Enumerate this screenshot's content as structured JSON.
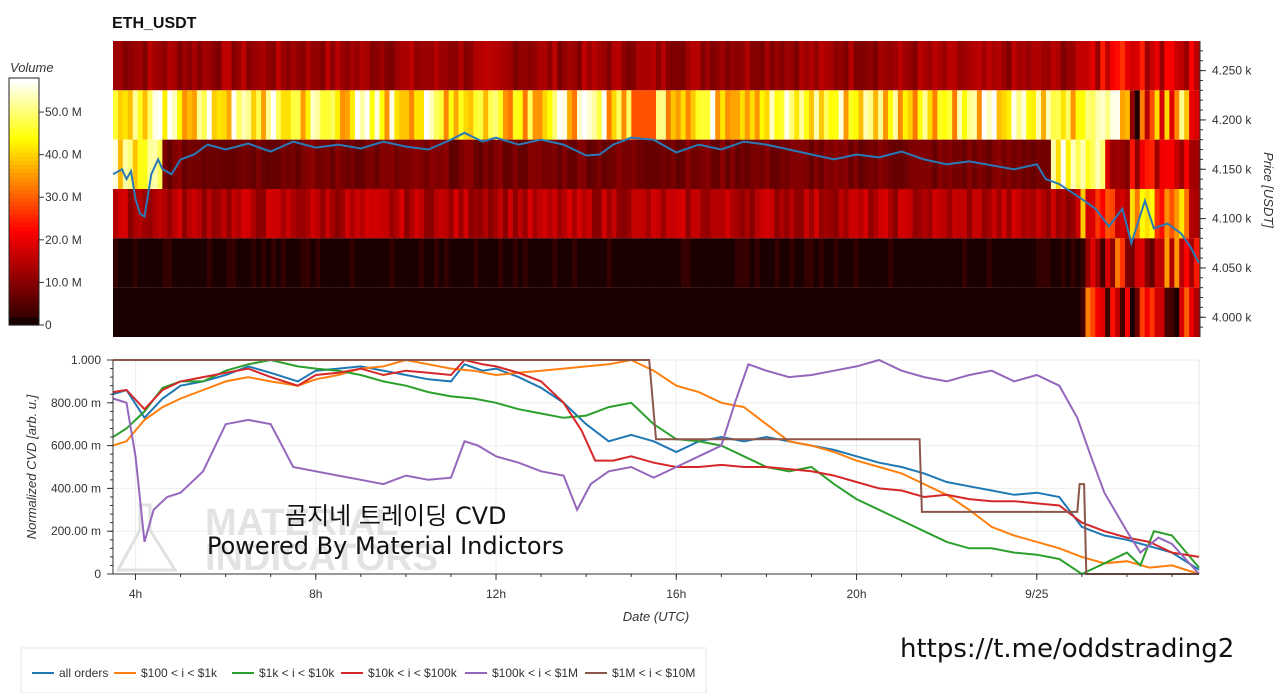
{
  "chart_data": [
    {
      "type": "heatmap",
      "title": "ETH_USDT",
      "colorbar_label": "Volume",
      "colorbar_ticks": [
        "0",
        "10.0 M",
        "20.0 M",
        "30.0 M",
        "40.0 M",
        "50.0 M"
      ],
      "colorbar_range": [
        0,
        58000000
      ],
      "ylabel": "Price [USDT]",
      "y_ticks": [
        "4.000 k",
        "4.050 k",
        "4.100 k",
        "4.150 k",
        "4.200 k",
        "4.250 k"
      ],
      "ylim": [
        3980,
        4280
      ],
      "price_bands": [
        {
          "low": 4230,
          "high": 4280,
          "level": 12
        },
        {
          "low": 4180,
          "high": 4230,
          "level": 46
        },
        {
          "low": 4130,
          "high": 4180,
          "level": 8
        },
        {
          "low": 4080,
          "high": 4130,
          "level": 14
        },
        {
          "low": 4030,
          "high": 4080,
          "level": 1
        },
        {
          "low": 3980,
          "high": 4030,
          "level": 0
        }
      ],
      "price_series": {
        "name": "price",
        "color": "#2a7ab8",
        "x_hours": [
          3.5,
          3.7,
          3.8,
          3.9,
          4.0,
          4.1,
          4.2,
          4.35,
          4.5,
          4.6,
          4.8,
          5.0,
          5.3,
          5.6,
          6.0,
          6.5,
          7.0,
          7.5,
          8.0,
          8.5,
          9.0,
          9.5,
          10.0,
          10.5,
          11.0,
          11.3,
          11.7,
          12.0,
          12.5,
          13.0,
          13.5,
          14.0,
          14.3,
          14.6,
          15.0,
          15.5,
          16.0,
          16.5,
          17.0,
          17.5,
          18.0,
          18.5,
          19.0,
          19.5,
          20.0,
          20.5,
          21.0,
          21.5,
          22.0,
          22.5,
          23.0,
          23.5,
          24.0,
          24.2,
          24.5,
          25.0,
          25.3,
          25.6,
          25.9,
          26.1,
          26.4,
          26.6,
          26.9,
          27.2,
          27.4,
          27.6
        ],
        "price": [
          4145,
          4150,
          4140,
          4148,
          4120,
          4105,
          4102,
          4145,
          4160,
          4150,
          4145,
          4160,
          4165,
          4175,
          4170,
          4176,
          4168,
          4178,
          4172,
          4175,
          4171,
          4178,
          4173,
          4170,
          4180,
          4187,
          4178,
          4182,
          4175,
          4180,
          4175,
          4164,
          4165,
          4175,
          4182,
          4180,
          4167,
          4175,
          4170,
          4178,
          4175,
          4170,
          4165,
          4160,
          4165,
          4162,
          4168,
          4160,
          4155,
          4158,
          4154,
          4150,
          4155,
          4140,
          4135,
          4120,
          4110,
          4092,
          4110,
          4075,
          4118,
          4090,
          4095,
          4085,
          4072,
          4055
        ]
      }
    },
    {
      "type": "line",
      "xlabel": "Date (UTC)",
      "ylabel": "Normalized CVD [arb. u.]",
      "x_ticks": [
        "4h",
        "8h",
        "12h",
        "16h",
        "20h",
        "9/25"
      ],
      "x_tick_hours": [
        4,
        8,
        12,
        16,
        20,
        24
      ],
      "xlim_hours": [
        3.5,
        27.6
      ],
      "y_ticks": [
        "0",
        "200.00 m",
        "400.00 m",
        "600.00 m",
        "800.00 m",
        "1.000"
      ],
      "ylim": [
        0,
        1.0
      ],
      "series": [
        {
          "name": "all orders",
          "color": "#1f77b4",
          "x": [
            3.5,
            3.8,
            4.2,
            4.6,
            5.0,
            5.5,
            6.0,
            6.5,
            7.0,
            7.6,
            8.0,
            8.5,
            9.0,
            9.5,
            10.0,
            10.5,
            11.0,
            11.3,
            11.7,
            12.0,
            12.5,
            13.0,
            13.5,
            14.0,
            14.5,
            15.0,
            15.5,
            16.0,
            16.5,
            17.0,
            17.5,
            18.0,
            18.5,
            19.0,
            19.5,
            20.0,
            20.5,
            21.0,
            21.5,
            22.0,
            22.5,
            23.0,
            23.5,
            24.0,
            24.5,
            25.0,
            25.5,
            26.0,
            26.5,
            27.0,
            27.6
          ],
          "y": [
            0.84,
            0.86,
            0.73,
            0.82,
            0.88,
            0.9,
            0.93,
            0.97,
            0.94,
            0.9,
            0.95,
            0.96,
            0.97,
            0.95,
            0.93,
            0.91,
            0.9,
            0.98,
            0.95,
            0.96,
            0.92,
            0.87,
            0.8,
            0.7,
            0.62,
            0.65,
            0.62,
            0.57,
            0.62,
            0.64,
            0.62,
            0.64,
            0.62,
            0.6,
            0.58,
            0.55,
            0.52,
            0.5,
            0.47,
            0.43,
            0.41,
            0.39,
            0.37,
            0.38,
            0.36,
            0.22,
            0.18,
            0.16,
            0.13,
            0.1,
            0.02
          ]
        },
        {
          "name": "$100 < i < $1k",
          "color": "#ff7f0e",
          "x": [
            3.5,
            3.8,
            4.2,
            4.6,
            5.0,
            5.5,
            6.0,
            6.5,
            7.0,
            7.6,
            8.0,
            8.5,
            9.0,
            9.5,
            10.0,
            10.5,
            11.0,
            11.5,
            12.0,
            12.5,
            13.0,
            13.5,
            14.0,
            14.5,
            15.0,
            15.5,
            16.0,
            16.5,
            17.0,
            17.5,
            18.0,
            18.5,
            19.0,
            19.5,
            20.0,
            20.5,
            21.0,
            21.5,
            22.0,
            22.5,
            23.0,
            23.5,
            24.0,
            24.5,
            25.0,
            25.5,
            26.0,
            26.5,
            27.0,
            27.6
          ],
          "y": [
            0.6,
            0.62,
            0.72,
            0.78,
            0.82,
            0.86,
            0.9,
            0.92,
            0.9,
            0.88,
            0.91,
            0.93,
            0.96,
            0.97,
            1.0,
            0.98,
            0.96,
            0.95,
            0.93,
            0.94,
            0.95,
            0.96,
            0.97,
            0.98,
            1.0,
            0.95,
            0.88,
            0.85,
            0.8,
            0.78,
            0.7,
            0.62,
            0.6,
            0.57,
            0.53,
            0.5,
            0.47,
            0.42,
            0.37,
            0.3,
            0.22,
            0.18,
            0.15,
            0.12,
            0.08,
            0.05,
            0.06,
            0.03,
            0.04,
            0.0
          ]
        },
        {
          "name": "$1k < i < $10k",
          "color": "#2ca02c",
          "x": [
            3.5,
            3.8,
            4.2,
            4.6,
            5.0,
            5.5,
            6.0,
            6.5,
            7.0,
            7.6,
            8.0,
            8.5,
            9.0,
            9.5,
            10.0,
            10.5,
            11.0,
            11.5,
            12.0,
            12.5,
            13.0,
            13.5,
            14.0,
            14.5,
            15.0,
            15.5,
            16.0,
            16.5,
            17.0,
            17.5,
            18.0,
            18.5,
            19.0,
            19.5,
            20.0,
            20.5,
            21.0,
            21.5,
            22.0,
            22.5,
            23.0,
            23.5,
            24.0,
            24.5,
            25.0,
            25.5,
            26.0,
            26.3,
            26.6,
            27.0,
            27.6
          ],
          "y": [
            0.64,
            0.68,
            0.76,
            0.87,
            0.9,
            0.9,
            0.95,
            0.98,
            1.0,
            0.97,
            0.96,
            0.95,
            0.93,
            0.9,
            0.88,
            0.85,
            0.83,
            0.82,
            0.8,
            0.77,
            0.75,
            0.73,
            0.74,
            0.78,
            0.8,
            0.7,
            0.63,
            0.62,
            0.6,
            0.55,
            0.5,
            0.48,
            0.5,
            0.42,
            0.35,
            0.3,
            0.25,
            0.2,
            0.15,
            0.12,
            0.12,
            0.1,
            0.09,
            0.07,
            0.0,
            0.05,
            0.1,
            0.04,
            0.2,
            0.18,
            0.03
          ]
        },
        {
          "name": "$10k < i < $100k",
          "color": "#d62728",
          "x": [
            3.5,
            3.8,
            4.2,
            4.6,
            5.0,
            5.5,
            6.0,
            6.5,
            7.0,
            7.6,
            8.0,
            8.5,
            9.0,
            9.5,
            10.0,
            10.5,
            11.0,
            11.3,
            11.7,
            12.0,
            12.5,
            13.0,
            13.5,
            13.9,
            14.2,
            14.6,
            15.0,
            15.5,
            16.0,
            16.5,
            17.0,
            17.5,
            18.0,
            18.5,
            19.0,
            19.5,
            20.0,
            20.5,
            21.0,
            21.5,
            22.0,
            22.5,
            23.0,
            23.5,
            24.0,
            24.5,
            25.0,
            25.5,
            26.0,
            26.5,
            27.0,
            27.6
          ],
          "y": [
            0.85,
            0.86,
            0.77,
            0.86,
            0.9,
            0.92,
            0.94,
            0.96,
            0.92,
            0.88,
            0.93,
            0.94,
            0.96,
            0.93,
            0.95,
            0.94,
            0.93,
            1.0,
            0.98,
            0.97,
            0.94,
            0.9,
            0.8,
            0.67,
            0.53,
            0.53,
            0.55,
            0.52,
            0.5,
            0.5,
            0.51,
            0.5,
            0.5,
            0.49,
            0.48,
            0.46,
            0.43,
            0.4,
            0.39,
            0.36,
            0.37,
            0.35,
            0.34,
            0.34,
            0.33,
            0.32,
            0.24,
            0.2,
            0.17,
            0.15,
            0.1,
            0.08
          ]
        },
        {
          "name": "$100k < i < $1M",
          "color": "#9467bd",
          "x": [
            3.5,
            3.8,
            4.0,
            4.2,
            4.4,
            4.7,
            5.0,
            5.5,
            6.0,
            6.5,
            7.0,
            7.5,
            8.0,
            8.5,
            9.0,
            9.5,
            10.0,
            10.5,
            11.0,
            11.3,
            11.6,
            12.0,
            12.5,
            13.0,
            13.5,
            13.8,
            14.1,
            14.5,
            15.0,
            15.5,
            16.0,
            16.5,
            17.0,
            17.3,
            17.6,
            18.0,
            18.5,
            19.0,
            19.5,
            20.0,
            20.5,
            21.0,
            21.5,
            22.0,
            22.5,
            23.0,
            23.5,
            24.0,
            24.5,
            24.9,
            25.2,
            25.5,
            26.0,
            26.3,
            26.7,
            27.0,
            27.6
          ],
          "y": [
            0.82,
            0.8,
            0.55,
            0.15,
            0.3,
            0.36,
            0.38,
            0.48,
            0.7,
            0.72,
            0.7,
            0.5,
            0.48,
            0.46,
            0.44,
            0.42,
            0.46,
            0.44,
            0.45,
            0.62,
            0.6,
            0.55,
            0.52,
            0.48,
            0.46,
            0.3,
            0.42,
            0.48,
            0.5,
            0.45,
            0.5,
            0.55,
            0.6,
            0.8,
            0.98,
            0.95,
            0.92,
            0.93,
            0.95,
            0.97,
            1.0,
            0.95,
            0.92,
            0.9,
            0.93,
            0.95,
            0.9,
            0.93,
            0.88,
            0.73,
            0.55,
            0.38,
            0.2,
            0.1,
            0.17,
            0.14,
            0.0
          ]
        },
        {
          "name": "$1M < i < $10M",
          "color": "#8c564b",
          "x": [
            3.5,
            15.4,
            15.55,
            21.4,
            21.45,
            24.9,
            24.95,
            25.05,
            25.1,
            25.15,
            27.6
          ],
          "y": [
            1.0,
            1.0,
            0.63,
            0.63,
            0.29,
            0.29,
            0.42,
            0.42,
            0.0,
            0.0,
            0.0
          ]
        }
      ]
    }
  ],
  "watermark": {
    "line1": "곰지네 트레이딩 CVD",
    "line2": "Powered By Material Indictors",
    "ghost1": "MATERIAL",
    "ghost2": "INDICATORS"
  },
  "url": "https://t.me/oddstrading2"
}
